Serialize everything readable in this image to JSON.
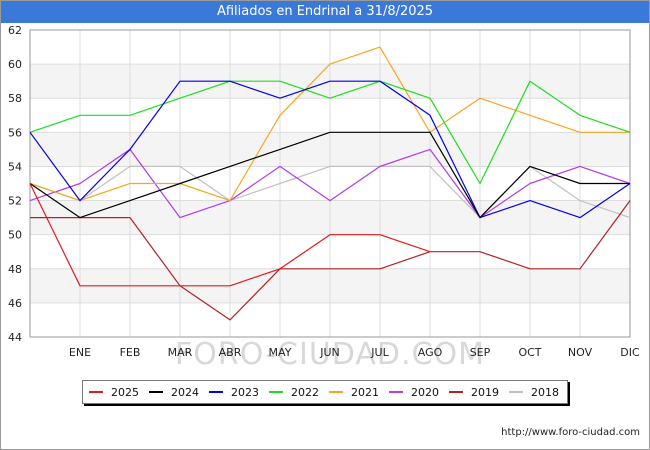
{
  "title": "Afiliados en Endrinal a 31/8/2025",
  "watermark": "FORO-CIUDAD.COM",
  "footer_url": "http://www.foro-ciudad.com",
  "colors": {
    "title_bar": "#3b79d9",
    "plot_band": "#f4f4f4",
    "grid": "#dddddd"
  },
  "chart_data": {
    "type": "line",
    "title": "Afiliados en Endrinal a 31/8/2025",
    "xlabel": "",
    "ylabel": "",
    "categories": [
      "",
      "ENE",
      "FEB",
      "MAR",
      "ABR",
      "MAY",
      "JUN",
      "JUL",
      "AGO",
      "SEP",
      "OCT",
      "NOV",
      "DIC"
    ],
    "ylim": [
      44,
      62
    ],
    "yticks": [
      44,
      46,
      48,
      50,
      52,
      54,
      56,
      58,
      60,
      62
    ],
    "grid": true,
    "legend_position": "bottom",
    "series": [
      {
        "name": "2025",
        "color": "#e31a1c",
        "values": [
          53,
          47,
          47,
          47,
          47,
          48,
          50,
          50,
          49,
          null,
          null,
          null,
          null
        ]
      },
      {
        "name": "2024",
        "color": "#000000",
        "values": [
          53,
          51,
          52,
          53,
          54,
          55,
          56,
          56,
          56,
          51,
          54,
          53,
          53
        ]
      },
      {
        "name": "2023",
        "color": "#0000ee",
        "values": [
          56,
          52,
          55,
          59,
          59,
          58,
          59,
          59,
          57,
          51,
          52,
          51,
          53
        ]
      },
      {
        "name": "2022",
        "color": "#1edd1e",
        "values": [
          56,
          57,
          57,
          58,
          59,
          59,
          58,
          59,
          58,
          53,
          59,
          57,
          56
        ]
      },
      {
        "name": "2021",
        "color": "#f5a623",
        "values": [
          53,
          52,
          53,
          53,
          52,
          57,
          60,
          61,
          56,
          58,
          57,
          56,
          56
        ]
      },
      {
        "name": "2020",
        "color": "#b23af0",
        "values": [
          52,
          53,
          55,
          51,
          52,
          54,
          52,
          54,
          55,
          51,
          53,
          54,
          53
        ]
      },
      {
        "name": "2019",
        "color": "#b22222",
        "values": [
          51,
          51,
          51,
          47,
          45,
          48,
          48,
          48,
          49,
          49,
          48,
          48,
          52
        ]
      },
      {
        "name": "2018",
        "color": "#c0c0c0",
        "values": [
          53,
          52,
          54,
          54,
          52,
          53,
          54,
          54,
          54,
          51,
          54,
          52,
          51
        ]
      }
    ]
  }
}
